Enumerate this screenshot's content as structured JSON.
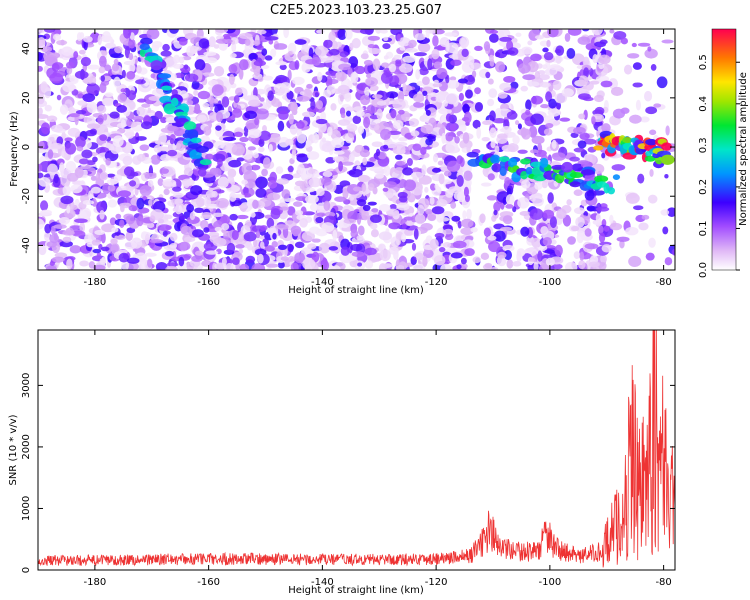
{
  "title": "C2E5.2023.103.23.25.G07",
  "colors": {
    "snr_line": "#ee3333",
    "frame": "#000000"
  },
  "chart_data": [
    {
      "type": "heatmap",
      "xlabel": "Height of straight line (km)",
      "ylabel": "Frequency (Hz)",
      "xlim": [
        -190,
        -78
      ],
      "ylim": [
        -50,
        48
      ],
      "xticks": [
        -180,
        -160,
        -140,
        -120,
        -100,
        -80
      ],
      "xtick_labels": [
        "-180",
        "-160",
        "-140",
        "-120",
        "-100",
        "-80"
      ],
      "yticks": [
        -40,
        -20,
        0,
        20,
        40
      ],
      "ytick_labels": [
        "-40",
        "-20",
        "0",
        "20",
        "40"
      ],
      "colorbar": {
        "label": "Normalized spectral amplitude",
        "range": [
          0,
          0.58
        ],
        "ticks": [
          0.0,
          0.1,
          0.2,
          0.3,
          0.4,
          0.5
        ],
        "tick_labels": [
          "0.0",
          "0.1",
          "0.2",
          "0.3",
          "0.4",
          "0.5"
        ]
      },
      "features": [
        {
          "x": [
            -171,
            -161
          ],
          "y": [
            42,
            -8
          ],
          "peak": 0.22
        },
        {
          "x": [
            -113,
            -89
          ],
          "y": [
            -5,
            -15
          ],
          "peak": 0.28
        },
        {
          "x": [
            -91,
            -79
          ],
          "y": [
            2,
            -2
          ],
          "peak": 0.55
        }
      ]
    },
    {
      "type": "line",
      "xlabel": "Height of straight line (km)",
      "ylabel": "SNR (10 * v/v)",
      "xlim": [
        -190,
        -78
      ],
      "ylim": [
        0,
        3900
      ],
      "xticks": [
        -180,
        -160,
        -140,
        -120,
        -100,
        -80
      ],
      "xtick_labels": [
        "-180",
        "-160",
        "-140",
        "-120",
        "-100",
        "-80"
      ],
      "yticks": [
        0,
        1000,
        2000,
        3000
      ],
      "ytick_labels": [
        "0",
        "1000",
        "2000",
        "3000"
      ],
      "series": [
        {
          "x": [
            -190,
            -180,
            -170,
            -160,
            -150,
            -140,
            -130,
            -120,
            -114,
            -112,
            -110.5,
            -109,
            -105,
            -102,
            -100.5,
            -99,
            -95,
            -91,
            -89,
            -87,
            -85.5,
            -84,
            -83,
            -82,
            -81.6,
            -81,
            -80,
            -79,
            -78
          ],
          "y": [
            150,
            160,
            170,
            180,
            180,
            170,
            170,
            180,
            230,
            420,
            700,
            350,
            290,
            320,
            600,
            350,
            220,
            300,
            600,
            900,
            2000,
            1200,
            1600,
            1800,
            3850,
            1500,
            1900,
            1300,
            1000
          ]
        }
      ]
    }
  ]
}
